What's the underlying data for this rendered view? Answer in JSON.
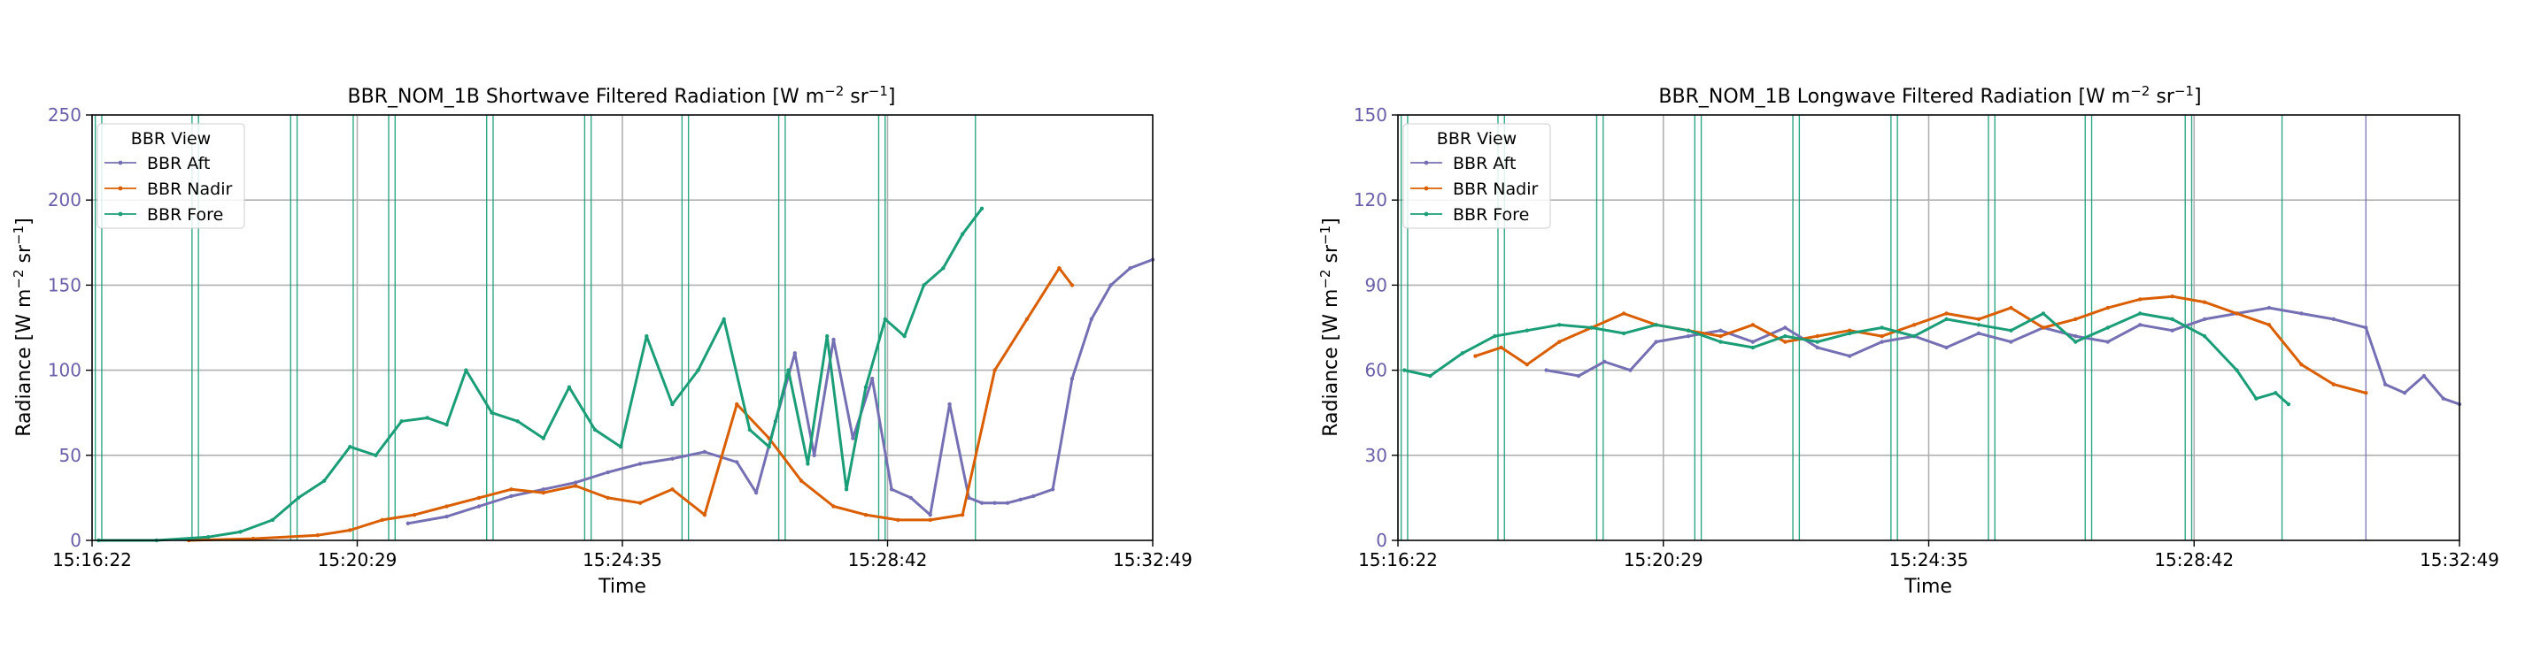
{
  "colors": {
    "aft": "#7570b3",
    "nadir": "#d95f02",
    "fore": "#1b9e77",
    "grid": "#b0b0b0",
    "ytick": "#6a5fa8",
    "axis": "#000000"
  },
  "legend_title": "BBR View",
  "time_ticks": [
    "15:16:22",
    "15:20:29",
    "15:24:35",
    "15:28:42",
    "15:32:49"
  ],
  "xlabel": "Time",
  "chart_data": [
    {
      "type": "line",
      "title_main": "BBR_NOM_1B Shortwave Filtered Radiation [W m",
      "title_sup1": "−2",
      "title_mid": " sr",
      "title_sup2": "−1",
      "title_end": "]",
      "ylabel_main": "Radiance [W m",
      "ylabel_sup1": "−2",
      "ylabel_mid": " sr",
      "ylabel_sup2": "−1",
      "ylabel_end": "]",
      "x_unit": "minutes after 15:16:22",
      "xlim": [
        0,
        16.45
      ],
      "ylim": [
        0,
        250
      ],
      "yticks": [
        "0",
        "50",
        "100",
        "150",
        "200",
        "250"
      ],
      "ytick_values": [
        0,
        50,
        100,
        150,
        200,
        250
      ],
      "grid": true,
      "legend_position": "upper-left",
      "vertical_lines": [
        0.05,
        0.15,
        1.55,
        1.65,
        3.08,
        3.18,
        4.05,
        4.6,
        4.7,
        6.12,
        6.22,
        7.64,
        7.74,
        9.15,
        9.25,
        10.65,
        10.75,
        12.2,
        12.3,
        13.7
      ],
      "series": [
        {
          "name": "BBR Aft",
          "color_key": "aft",
          "x": [
            4.9,
            5.5,
            6.0,
            6.5,
            7.0,
            7.5,
            8.0,
            8.5,
            9.0,
            9.5,
            10.0,
            10.3,
            10.6,
            10.9,
            11.2,
            11.5,
            11.8,
            12.1,
            12.4,
            12.7,
            13.0,
            13.3,
            13.6,
            13.8,
            14.0,
            14.2,
            14.4,
            14.6,
            14.9,
            15.2,
            15.5,
            15.8,
            16.1,
            16.45
          ],
          "y": [
            10,
            14,
            20,
            26,
            30,
            34,
            40,
            45,
            48,
            52,
            46,
            28,
            70,
            110,
            50,
            118,
            60,
            95,
            30,
            25,
            15,
            80,
            25,
            22,
            22,
            22,
            24,
            26,
            30,
            95,
            130,
            150,
            160,
            165
          ]
        },
        {
          "name": "BBR Nadir",
          "color_key": "nadir",
          "x": [
            1.5,
            2.5,
            3.5,
            4.0,
            4.5,
            5.0,
            5.5,
            6.0,
            6.5,
            7.0,
            7.5,
            8.0,
            8.5,
            9.0,
            9.5,
            10.0,
            10.5,
            11.0,
            11.5,
            12.0,
            12.5,
            13.0,
            13.5,
            14.0,
            14.5,
            15.0,
            15.2
          ],
          "y": [
            0,
            1,
            3,
            6,
            12,
            15,
            20,
            25,
            30,
            28,
            32,
            25,
            22,
            30,
            15,
            80,
            60,
            35,
            20,
            15,
            12,
            12,
            15,
            100,
            130,
            160,
            150
          ]
        },
        {
          "name": "BBR Fore",
          "color_key": "fore",
          "x": [
            0.1,
            1.0,
            1.8,
            2.3,
            2.8,
            3.2,
            3.6,
            4.0,
            4.4,
            4.8,
            5.2,
            5.5,
            5.8,
            6.2,
            6.6,
            7.0,
            7.4,
            7.8,
            8.2,
            8.6,
            9.0,
            9.4,
            9.8,
            10.2,
            10.5,
            10.8,
            11.1,
            11.4,
            11.7,
            12.0,
            12.3,
            12.6,
            12.9,
            13.2,
            13.5,
            13.8
          ],
          "y": [
            0,
            0,
            2,
            5,
            12,
            25,
            35,
            55,
            50,
            70,
            72,
            68,
            100,
            75,
            70,
            60,
            90,
            65,
            55,
            120,
            80,
            100,
            130,
            65,
            55,
            100,
            45,
            120,
            30,
            90,
            130,
            120,
            150,
            160,
            180,
            195
          ]
        }
      ]
    },
    {
      "type": "line",
      "title_main": "BBR_NOM_1B Longwave Filtered Radiation [W m",
      "title_sup1": "−2",
      "title_mid": " sr",
      "title_sup2": "−1",
      "title_end": "]",
      "ylabel_main": "Radiance [W m",
      "ylabel_sup1": "−2",
      "ylabel_mid": " sr",
      "ylabel_sup2": "−1",
      "ylabel_end": "]",
      "x_unit": "minutes after 15:16:22",
      "xlim": [
        0,
        16.45
      ],
      "ylim": [
        0,
        150
      ],
      "yticks": [
        "0",
        "30",
        "60",
        "90",
        "120",
        "150"
      ],
      "ytick_values": [
        0,
        30,
        60,
        90,
        120,
        150
      ],
      "grid": true,
      "legend_position": "upper-left",
      "vertical_lines": [
        0.05,
        0.15,
        1.55,
        1.65,
        3.08,
        3.18,
        4.6,
        4.7,
        6.12,
        6.22,
        7.64,
        7.74,
        9.15,
        9.25,
        10.65,
        10.75,
        12.2,
        12.3,
        13.7,
        15.0
      ],
      "series": [
        {
          "name": "BBR Aft",
          "color_key": "aft",
          "x": [
            2.3,
            2.8,
            3.2,
            3.6,
            4.0,
            4.5,
            5.0,
            5.5,
            6.0,
            6.5,
            7.0,
            7.5,
            8.0,
            8.5,
            9.0,
            9.5,
            10.0,
            10.5,
            11.0,
            11.5,
            12.0,
            12.5,
            13.0,
            13.5,
            14.0,
            14.5,
            15.0,
            15.3,
            15.6,
            15.9,
            16.2,
            16.45
          ],
          "y": [
            60,
            58,
            63,
            60,
            70,
            72,
            74,
            70,
            75,
            68,
            65,
            70,
            72,
            68,
            73,
            70,
            75,
            72,
            70,
            76,
            74,
            78,
            80,
            82,
            80,
            78,
            75,
            55,
            52,
            58,
            50,
            48
          ]
        },
        {
          "name": "BBR Nadir",
          "color_key": "nadir",
          "x": [
            1.2,
            1.6,
            2.0,
            2.5,
            3.0,
            3.5,
            4.0,
            4.5,
            5.0,
            5.5,
            6.0,
            6.5,
            7.0,
            7.5,
            8.0,
            8.5,
            9.0,
            9.5,
            10.0,
            10.5,
            11.0,
            11.5,
            12.0,
            12.5,
            13.0,
            13.5,
            14.0,
            14.5,
            15.0
          ],
          "y": [
            65,
            68,
            62,
            70,
            75,
            80,
            76,
            74,
            72,
            76,
            70,
            72,
            74,
            72,
            76,
            80,
            78,
            82,
            75,
            78,
            82,
            85,
            86,
            84,
            80,
            76,
            62,
            55,
            52
          ]
        },
        {
          "name": "BBR Fore",
          "color_key": "fore",
          "x": [
            0.1,
            0.5,
            1.0,
            1.5,
            2.0,
            2.5,
            3.0,
            3.5,
            4.0,
            4.5,
            5.0,
            5.5,
            6.0,
            6.5,
            7.0,
            7.5,
            8.0,
            8.5,
            9.0,
            9.5,
            10.0,
            10.5,
            11.0,
            11.5,
            12.0,
            12.5,
            13.0,
            13.3,
            13.6,
            13.8
          ],
          "y": [
            60,
            58,
            66,
            72,
            74,
            76,
            75,
            73,
            76,
            74,
            70,
            68,
            72,
            70,
            73,
            75,
            72,
            78,
            76,
            74,
            80,
            70,
            75,
            80,
            78,
            72,
            60,
            50,
            52,
            48
          ]
        }
      ]
    }
  ]
}
